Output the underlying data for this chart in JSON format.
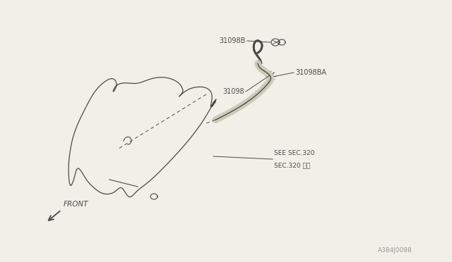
{
  "bg_color": "#f0efe8",
  "line_color": "#4a4a4a",
  "text_color": "#4a4a4a",
  "fig_width": 6.4,
  "fig_height": 3.72,
  "dpi": 100,
  "watermark": "A384J0088",
  "front_label": "FRONT",
  "label_31098B": "31098B",
  "label_31098BA": "31098BA",
  "label_31098": "31098",
  "label_sec": "SEE SEC.320",
  "label_sec2": "SEC.320 参照"
}
